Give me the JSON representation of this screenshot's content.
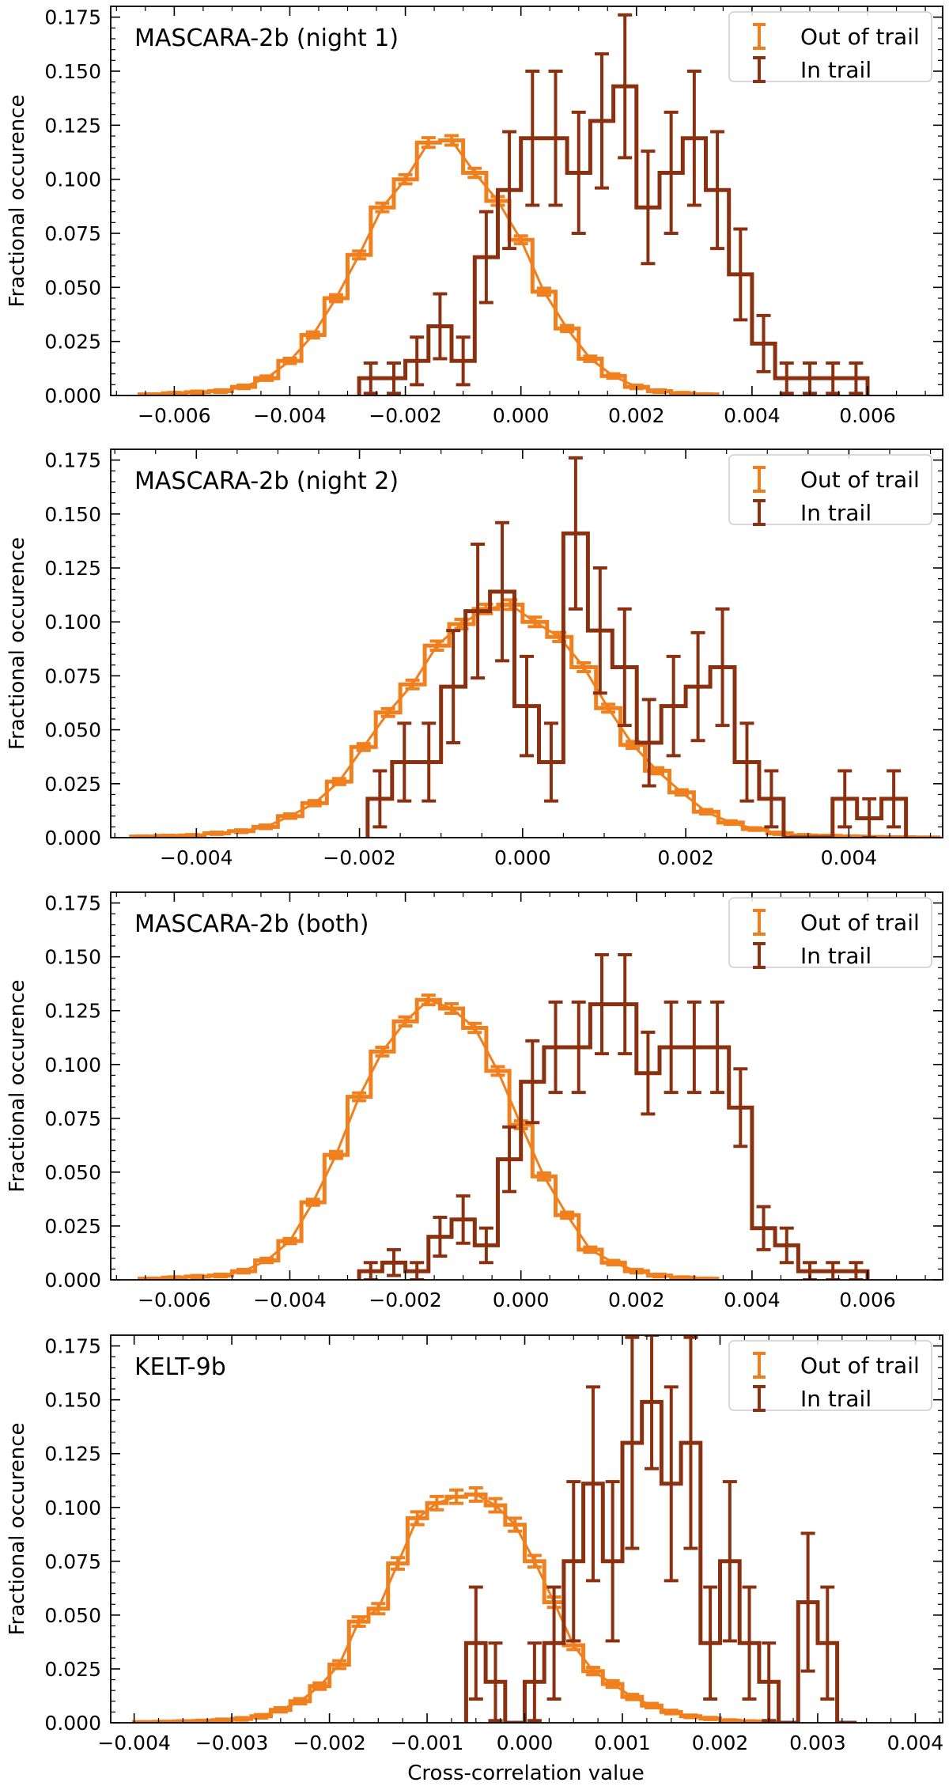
{
  "colors": {
    "out_of_trail": "#f07f1e",
    "in_trail": "#8b3110"
  },
  "xlabel": "Cross-correlation value",
  "chart_data": [
    {
      "type": "histogram",
      "title": "MASCARA-2b (night 1)",
      "xlabel": "",
      "ylabel": "Fractional occurence",
      "xlim": [
        -0.0071,
        0.0073
      ],
      "ylim": [
        0,
        0.18
      ],
      "xticks": [
        -0.006,
        -0.004,
        -0.002,
        0.0,
        0.002,
        0.004,
        0.006
      ],
      "xtick_labels": [
        "−0.006",
        "−0.004",
        "−0.002",
        "0.000",
        "0.002",
        "0.004",
        "0.006"
      ],
      "yticks": [
        0,
        0.025,
        0.05,
        0.075,
        0.1,
        0.125,
        0.15,
        0.175
      ],
      "ytick_labels": [
        "0.000",
        "0.025",
        "0.050",
        "0.075",
        "0.100",
        "0.125",
        "0.150",
        "0.175"
      ],
      "legend": [
        "Out of trail",
        "In trail"
      ],
      "series": [
        {
          "name": "Out of trail",
          "bin_start": -0.0066,
          "bin_width": 0.0004,
          "values": [
            0.0005,
            0.001,
            0.0015,
            0.002,
            0.004,
            0.008,
            0.016,
            0.028,
            0.045,
            0.065,
            0.087,
            0.1,
            0.117,
            0.118,
            0.103,
            0.09,
            0.072,
            0.048,
            0.031,
            0.017,
            0.009,
            0.004,
            0.002,
            0.001,
            0.0005
          ],
          "errors": [
            0.0003,
            0.0004,
            0.0005,
            0.0006,
            0.0008,
            0.001,
            0.0012,
            0.0014,
            0.0016,
            0.0018,
            0.002,
            0.0021,
            0.0022,
            0.0022,
            0.0021,
            0.002,
            0.0018,
            0.0016,
            0.0014,
            0.0012,
            0.001,
            0.0008,
            0.0006,
            0.0004,
            0.0003
          ],
          "fit": true
        },
        {
          "name": "In trail",
          "bin_start": -0.0028,
          "bin_width": 0.0004,
          "values": [
            0.008,
            0.008,
            0.016,
            0.032,
            0.016,
            0.064,
            0.095,
            0.119,
            0.119,
            0.103,
            0.127,
            0.143,
            0.087,
            0.103,
            0.119,
            0.095,
            0.056,
            0.024,
            0.008,
            0.008,
            0.008,
            0.008
          ],
          "errors": [
            0.007,
            0.007,
            0.011,
            0.015,
            0.011,
            0.021,
            0.027,
            0.031,
            0.031,
            0.028,
            0.031,
            0.033,
            0.026,
            0.028,
            0.031,
            0.027,
            0.021,
            0.013,
            0.007,
            0.007,
            0.007,
            0.007
          ],
          "fit": false
        }
      ]
    },
    {
      "type": "histogram",
      "title": "MASCARA-2b (night 2)",
      "xlabel": "",
      "ylabel": "Fractional occurence",
      "xlim": [
        -0.00505,
        0.00515
      ],
      "ylim": [
        0,
        0.18
      ],
      "xticks": [
        -0.004,
        -0.002,
        0.0,
        0.002,
        0.004
      ],
      "xtick_labels": [
        "−0.004",
        "−0.002",
        "0.000",
        "0.002",
        "0.004"
      ],
      "yticks": [
        0,
        0.025,
        0.05,
        0.075,
        0.1,
        0.125,
        0.15,
        0.175
      ],
      "ytick_labels": [
        "0.000",
        "0.025",
        "0.050",
        "0.075",
        "0.100",
        "0.125",
        "0.150",
        "0.175"
      ],
      "legend": [
        "Out of trail",
        "In trail"
      ],
      "series": [
        {
          "name": "Out of trail",
          "bin_start": -0.0048,
          "bin_width": 0.0003,
          "values": [
            0.0005,
            0.0008,
            0.001,
            0.002,
            0.003,
            0.005,
            0.01,
            0.016,
            0.026,
            0.042,
            0.058,
            0.071,
            0.089,
            0.099,
            0.106,
            0.108,
            0.1,
            0.093,
            0.079,
            0.06,
            0.043,
            0.031,
            0.021,
            0.012,
            0.007,
            0.004,
            0.002,
            0.001,
            0.0008,
            0.0005,
            0.0003,
            0.0002,
            0.0001
          ],
          "errors": [
            0.0003,
            0.0003,
            0.0004,
            0.0005,
            0.0006,
            0.0008,
            0.001,
            0.0012,
            0.0014,
            0.0016,
            0.0018,
            0.002,
            0.0021,
            0.0022,
            0.0022,
            0.0022,
            0.0022,
            0.0021,
            0.002,
            0.0018,
            0.0016,
            0.0014,
            0.0012,
            0.001,
            0.0008,
            0.0006,
            0.0005,
            0.0004,
            0.0003,
            0.0003,
            0.0002,
            0.0002,
            0.0001
          ],
          "fit": true
        },
        {
          "name": "In trail",
          "bin_start": -0.0019,
          "bin_width": 0.0003,
          "values": [
            0.018,
            0.035,
            0.035,
            0.07,
            0.105,
            0.114,
            0.061,
            0.035,
            0.141,
            0.096,
            0.079,
            0.044,
            0.061,
            0.07,
            0.079,
            0.035,
            0.018,
            0,
            0,
            0.018,
            0.009,
            0.018
          ],
          "errors": [
            0.013,
            0.018,
            0.018,
            0.026,
            0.031,
            0.032,
            0.023,
            0.018,
            0.035,
            0.029,
            0.027,
            0.02,
            0.023,
            0.025,
            0.027,
            0.018,
            0.013,
            0,
            0,
            0.013,
            0.009,
            0.013
          ],
          "fit": false
        }
      ]
    },
    {
      "type": "histogram",
      "title": "MASCARA-2b (both)",
      "xlabel": "",
      "ylabel": "Fractional occurence",
      "xlim": [
        -0.0071,
        0.0073
      ],
      "ylim": [
        0,
        0.18
      ],
      "xticks": [
        -0.006,
        -0.004,
        -0.002,
        0.0,
        0.002,
        0.004,
        0.006
      ],
      "xtick_labels": [
        "−0.006",
        "−0.004",
        "−0.002",
        "0.000",
        "0.002",
        "0.004",
        "0.006"
      ],
      "yticks": [
        0,
        0.025,
        0.05,
        0.075,
        0.1,
        0.125,
        0.15,
        0.175
      ],
      "ytick_labels": [
        "0.000",
        "0.025",
        "0.050",
        "0.075",
        "0.100",
        "0.125",
        "0.150",
        "0.175"
      ],
      "legend": [
        "Out of trail",
        "In trail"
      ],
      "series": [
        {
          "name": "Out of trail",
          "bin_start": -0.0066,
          "bin_width": 0.0004,
          "values": [
            0.0005,
            0.001,
            0.0015,
            0.002,
            0.004,
            0.009,
            0.018,
            0.036,
            0.058,
            0.085,
            0.106,
            0.12,
            0.13,
            0.126,
            0.117,
            0.097,
            0.072,
            0.048,
            0.03,
            0.014,
            0.008,
            0.004,
            0.002,
            0.001,
            0.0005
          ],
          "errors": [
            0.0003,
            0.0004,
            0.0005,
            0.0006,
            0.0008,
            0.001,
            0.0012,
            0.0014,
            0.0016,
            0.0018,
            0.002,
            0.0021,
            0.0022,
            0.0022,
            0.0021,
            0.002,
            0.0018,
            0.0016,
            0.0014,
            0.0012,
            0.001,
            0.0008,
            0.0006,
            0.0004,
            0.0003
          ],
          "fit": true
        },
        {
          "name": "In trail",
          "bin_start": -0.0028,
          "bin_width": 0.0004,
          "values": [
            0.004,
            0.008,
            0.004,
            0.02,
            0.028,
            0.016,
            0.056,
            0.092,
            0.108,
            0.108,
            0.128,
            0.128,
            0.096,
            0.108,
            0.108,
            0.108,
            0.08,
            0.024,
            0.016,
            0.004,
            0.004,
            0.004
          ],
          "errors": [
            0.004,
            0.006,
            0.004,
            0.009,
            0.011,
            0.008,
            0.015,
            0.019,
            0.021,
            0.021,
            0.023,
            0.023,
            0.019,
            0.021,
            0.021,
            0.021,
            0.018,
            0.01,
            0.008,
            0.004,
            0.004,
            0.004
          ],
          "fit": false
        }
      ]
    },
    {
      "type": "histogram",
      "title": "KELT-9b",
      "xlabel": "Cross-correlation value",
      "ylabel": "Fractional occurence",
      "xlim": [
        -0.00424,
        0.00428
      ],
      "ylim": [
        0,
        0.18
      ],
      "xticks": [
        -0.004,
        -0.003,
        -0.002,
        -0.001,
        0.0,
        0.001,
        0.002,
        0.003,
        0.004
      ],
      "xtick_labels": [
        "−0.004",
        "−0.003",
        "−0.002",
        "−0.001",
        "0.000",
        "0.001",
        "0.002",
        "0.003",
        "0.004"
      ],
      "yticks": [
        0,
        0.025,
        0.05,
        0.075,
        0.1,
        0.125,
        0.15,
        0.175
      ],
      "ytick_labels": [
        "0.000",
        "0.025",
        "0.050",
        "0.075",
        "0.100",
        "0.125",
        "0.150",
        "0.175"
      ],
      "legend": [
        "Out of trail",
        "In trail"
      ],
      "series": [
        {
          "name": "Out of trail",
          "bin_start": -0.004,
          "bin_width": 0.0002,
          "values": [
            0.0003,
            0.0004,
            0.0006,
            0.0008,
            0.0012,
            0.0018,
            0.003,
            0.006,
            0.01,
            0.017,
            0.027,
            0.047,
            0.053,
            0.074,
            0.095,
            0.102,
            0.105,
            0.106,
            0.101,
            0.092,
            0.075,
            0.056,
            0.036,
            0.024,
            0.018,
            0.012,
            0.008,
            0.005,
            0.003,
            0.002,
            0.001,
            0.0006,
            0.0004
          ],
          "errors": [
            0.0002,
            0.0003,
            0.0003,
            0.0004,
            0.0005,
            0.0006,
            0.0008,
            0.001,
            0.0012,
            0.0015,
            0.0018,
            0.0022,
            0.0024,
            0.0027,
            0.003,
            0.0031,
            0.0031,
            0.0031,
            0.0031,
            0.003,
            0.0027,
            0.0024,
            0.002,
            0.0017,
            0.0015,
            0.0012,
            0.001,
            0.0008,
            0.0006,
            0.0005,
            0.0004,
            0.0003,
            0.0002
          ],
          "fit": true
        },
        {
          "name": "In trail",
          "bin_start": -0.0006,
          "bin_width": 0.0002,
          "values": [
            0.037,
            0.019,
            0,
            0.019,
            0.037,
            0.075,
            0.111,
            0.075,
            0.13,
            0.149,
            0.111,
            0.13,
            0.037,
            0.075,
            0.037,
            0.019,
            0,
            0.056,
            0.037,
            0
          ],
          "errors": [
            0.026,
            0.018,
            0,
            0.018,
            0.026,
            0.037,
            0.045,
            0.037,
            0.049,
            0.031,
            0.045,
            0.049,
            0.026,
            0.037,
            0.026,
            0.018,
            0,
            0.032,
            0.026,
            0
          ],
          "fit": false
        }
      ]
    }
  ]
}
